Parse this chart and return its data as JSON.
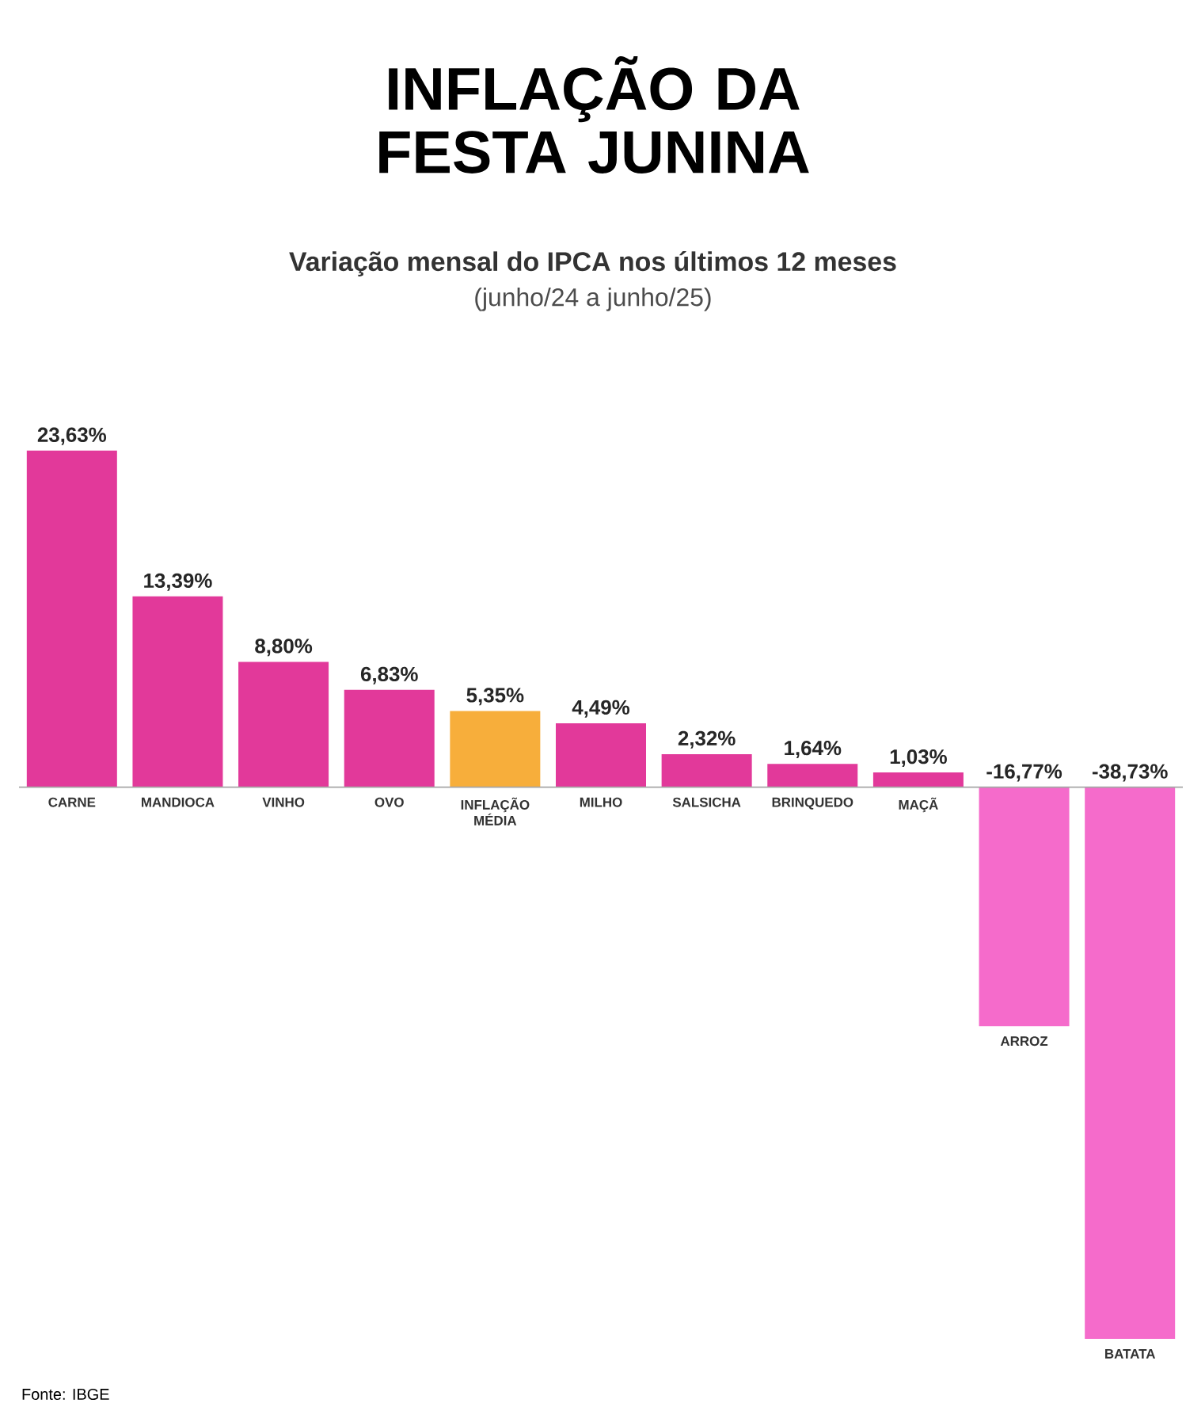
{
  "chart_data": {
    "type": "bar",
    "title": "INFLAÇÃO DA FESTA JUNINA",
    "subtitle": "Variação mensal do IPCA nos últimos 12 meses",
    "annotations": [
      "(junho/24 a junho/25)",
      "Fonte: IBGE"
    ],
    "categories": [
      "CARNE",
      "MANDIOCA",
      "VINHO",
      "OVO",
      "INFLAÇÃO MÉDIA",
      "MILHO",
      "SALSICHA",
      "BRINQUEDO",
      "MAÇÃ",
      "ARROZ",
      "BATATA"
    ],
    "values": [
      23.63,
      13.39,
      8.8,
      6.83,
      5.35,
      4.49,
      2.32,
      1.64,
      1.03,
      -16.77,
      -38.73
    ],
    "value_labels": [
      "23,63%",
      "13,39%",
      "8,80%",
      "6,83%",
      "5,35%",
      "4,49%",
      "2,32%",
      "1,64%",
      "1,03%",
      "-16,77%",
      "-38,73%"
    ],
    "colors": [
      "#e2399a",
      "#e2399a",
      "#e2399a",
      "#e2399a",
      "#f7ae3b",
      "#e2399a",
      "#e2399a",
      "#e2399a",
      "#e2399a",
      "#f56bcb",
      "#f56bcb"
    ]
  }
}
